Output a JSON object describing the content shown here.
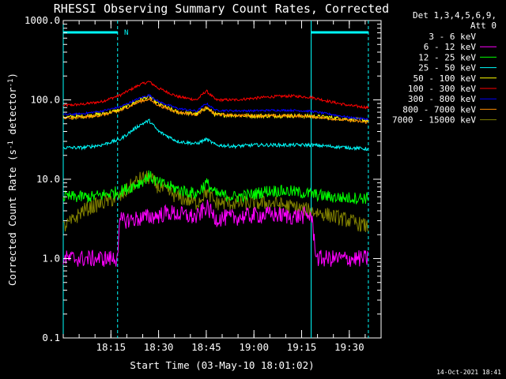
{
  "chart_data": {
    "type": "line",
    "title": "RHESSI Observing Summary Count Rates, Corrected",
    "xlabel": "Start Time (03-May-10 18:01:02)",
    "ylabel_main": "Corrected Count Rate (s",
    "ylabel_sup1": "-1",
    "ylabel_mid": " detector",
    "ylabel_sup2": "-1",
    "ylabel_end": ")",
    "y_scale": "log",
    "ylim": [
      0.1,
      1000
    ],
    "xlim_minutes": [
      18.0,
      19.6667
    ],
    "x_ticks": [
      {
        "label": "18:15",
        "value": 18.25
      },
      {
        "label": "18:30",
        "value": 18.5
      },
      {
        "label": "18:45",
        "value": 18.75
      },
      {
        "label": "19:00",
        "value": 19.0
      },
      {
        "label": "19:15",
        "value": 19.25
      },
      {
        "label": "19:30",
        "value": 19.5
      }
    ],
    "y_ticks": [
      {
        "label": "1000.0",
        "value": 1000
      },
      {
        "label": "100.0",
        "value": 100
      },
      {
        "label": "10.0",
        "value": 10
      },
      {
        "label": "1.0",
        "value": 1
      },
      {
        "label": "0.1",
        "value": 0.1
      }
    ],
    "legend_header1": "Det 1,3,4,5,6,9,",
    "legend_header2": "Att 0",
    "legend_placement": "top-right, outside plot",
    "night_marker": "N",
    "attenuator_periods": [
      [
        18.0,
        18.285
      ],
      [
        19.3,
        19.6
      ]
    ],
    "vertical_markers": [
      18.0,
      18.285,
      19.3,
      19.6
    ],
    "series": [
      {
        "name": "3 - 6 keV",
        "color": "#000000"
      },
      {
        "name": "6 - 12 keV",
        "color": "#ff00ff",
        "x": [
          18.0,
          18.28,
          18.3,
          18.4,
          18.5,
          18.55,
          18.7,
          18.75,
          18.8,
          18.9,
          19.0,
          19.1,
          19.2,
          19.3,
          19.33,
          19.6
        ],
        "y": [
          1.0,
          1.0,
          3.0,
          3.2,
          3.5,
          3.8,
          3.3,
          4.5,
          3.2,
          3.3,
          3.5,
          3.6,
          3.4,
          3.5,
          1.0,
          1.0
        ]
      },
      {
        "name": "12 - 25 keV",
        "color": "#00ff00",
        "x": [
          18.0,
          18.15,
          18.3,
          18.4,
          18.45,
          18.5,
          18.6,
          18.7,
          18.75,
          18.8,
          18.9,
          18.95,
          19.0,
          19.05,
          19.1,
          19.2,
          19.3,
          19.4,
          19.5,
          19.6
        ],
        "y": [
          6.0,
          6.0,
          7.0,
          9.0,
          11.0,
          9.0,
          7.5,
          6.5,
          9.0,
          6.5,
          6.0,
          6.2,
          6.5,
          7.0,
          7.2,
          7.0,
          6.5,
          6.0,
          5.8,
          5.8
        ]
      },
      {
        "name": "25 - 50 keV",
        "color": "#00ffff",
        "x": [
          18.0,
          18.1,
          18.2,
          18.3,
          18.4,
          18.45,
          18.5,
          18.6,
          18.7,
          18.75,
          18.8,
          18.9,
          19.0,
          19.1,
          19.2,
          19.3,
          19.4,
          19.5,
          19.6
        ],
        "y": [
          25,
          25,
          27,
          32,
          48,
          55,
          40,
          30,
          28,
          32,
          27,
          26,
          27,
          27,
          27,
          27,
          26,
          25,
          24
        ]
      },
      {
        "name": "50 - 100 keV",
        "color": "#ffff00",
        "x": [
          18.0,
          18.1,
          18.2,
          18.3,
          18.4,
          18.45,
          18.5,
          18.6,
          18.7,
          18.75,
          18.8,
          18.9,
          19.0,
          19.1,
          19.2,
          19.3,
          19.4,
          19.5,
          19.6
        ],
        "y": [
          60,
          62,
          66,
          75,
          100,
          110,
          88,
          70,
          66,
          80,
          65,
          64,
          63,
          63,
          63,
          62,
          60,
          57,
          55
        ]
      },
      {
        "name": "100 - 300 keV",
        "color": "#ff0000",
        "x": [
          18.0,
          18.1,
          18.2,
          18.3,
          18.4,
          18.45,
          18.5,
          18.6,
          18.7,
          18.75,
          18.8,
          18.9,
          19.0,
          19.1,
          19.2,
          19.3,
          19.4,
          19.5,
          19.6
        ],
        "y": [
          85,
          88,
          95,
          115,
          155,
          170,
          140,
          110,
          100,
          130,
          100,
          100,
          105,
          110,
          112,
          108,
          95,
          85,
          80
        ]
      },
      {
        "name": "300 - 800 keV",
        "color": "#0000ff",
        "x": [
          18.0,
          18.1,
          18.2,
          18.3,
          18.4,
          18.45,
          18.5,
          18.6,
          18.7,
          18.75,
          18.8,
          18.9,
          19.0,
          19.1,
          19.2,
          19.3,
          19.4,
          19.5,
          19.6
        ],
        "y": [
          65,
          67,
          72,
          82,
          105,
          115,
          95,
          78,
          72,
          90,
          74,
          73,
          73,
          74,
          74,
          72,
          66,
          60,
          57
        ]
      },
      {
        "name": "800 - 7000 keV",
        "color": "#ff8c00",
        "x": [
          18.0,
          18.1,
          18.2,
          18.3,
          18.4,
          18.45,
          18.5,
          18.6,
          18.7,
          18.75,
          18.8,
          18.9,
          19.0,
          19.1,
          19.2,
          19.3,
          19.4,
          19.5,
          19.6
        ],
        "y": [
          58,
          60,
          64,
          73,
          95,
          102,
          85,
          70,
          65,
          80,
          65,
          64,
          63,
          63,
          63,
          62,
          58,
          55,
          52
        ]
      },
      {
        "name": "7000 - 15000 keV",
        "color": "#808000",
        "x": [
          18.0,
          18.05,
          18.1,
          18.2,
          18.3,
          18.35,
          18.4,
          18.45,
          18.5,
          18.6,
          18.7,
          18.75,
          18.8,
          18.9,
          19.0,
          19.1,
          19.2,
          19.3,
          19.4,
          19.5,
          19.6
        ],
        "y": [
          2.5,
          3.0,
          4.0,
          5.0,
          6.0,
          8.0,
          10.0,
          10.5,
          8.0,
          6.0,
          5.0,
          7.0,
          5.0,
          5.0,
          5.0,
          5.0,
          4.5,
          4.0,
          3.5,
          3.0,
          2.5
        ]
      }
    ]
  },
  "footer_timestamp": "14-Oct-2021 18:41"
}
